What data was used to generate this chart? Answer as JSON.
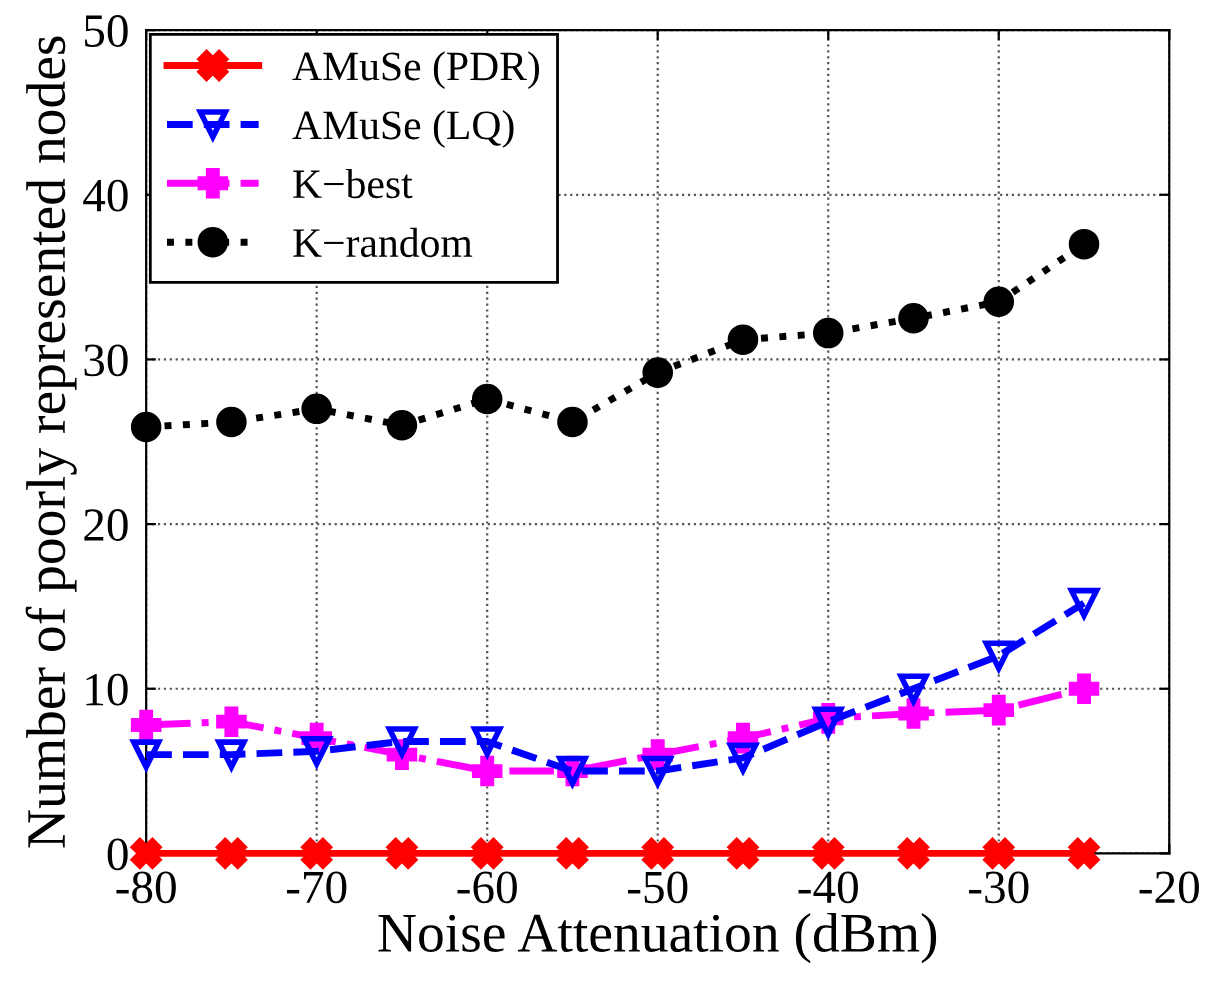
{
  "chart_data": {
    "type": "line",
    "xlabel": "Noise Attenuation (dBm)",
    "ylabel": "Number of poorly represented nodes",
    "x": [
      -80,
      -75,
      -70,
      -65,
      -60,
      -55,
      -50,
      -45,
      -40,
      -35,
      -30,
      -25
    ],
    "series": [
      {
        "name": "AMuSe (PDR)",
        "color": "#ff0000",
        "values": [
          0,
          0,
          0,
          0,
          0,
          0,
          0,
          0,
          0,
          0,
          0,
          0
        ],
        "marker": "cross",
        "line_style": "solid"
      },
      {
        "name": "AMuSe (LQ)",
        "color": "#0000ff",
        "values": [
          6,
          6,
          6.2,
          6.8,
          6.8,
          5,
          5,
          5.8,
          8,
          10,
          12,
          15.2
        ],
        "marker": "triangle",
        "line_style": "dashed"
      },
      {
        "name": "K−best",
        "color": "#ff00ff",
        "values": [
          7.8,
          8,
          7,
          6,
          5,
          5,
          6,
          7,
          8.2,
          8.5,
          8.7,
          10
        ],
        "marker": "plus",
        "line_style": "dashdot"
      },
      {
        "name": "K−random",
        "color": "#000000",
        "values": [
          25.9,
          26.2,
          27,
          26,
          27.6,
          26.2,
          29.2,
          31.2,
          31.6,
          32.5,
          33.5,
          37
        ],
        "marker": "circle",
        "line_style": "dotted"
      }
    ],
    "xlim": [
      -80,
      -20
    ],
    "xticks": [
      -80,
      -70,
      -60,
      -50,
      -40,
      -30,
      -20
    ],
    "ylim": [
      0,
      50
    ],
    "yticks": [
      0,
      10,
      20,
      30,
      40,
      50
    ],
    "grid": true,
    "legend": "top left"
  }
}
